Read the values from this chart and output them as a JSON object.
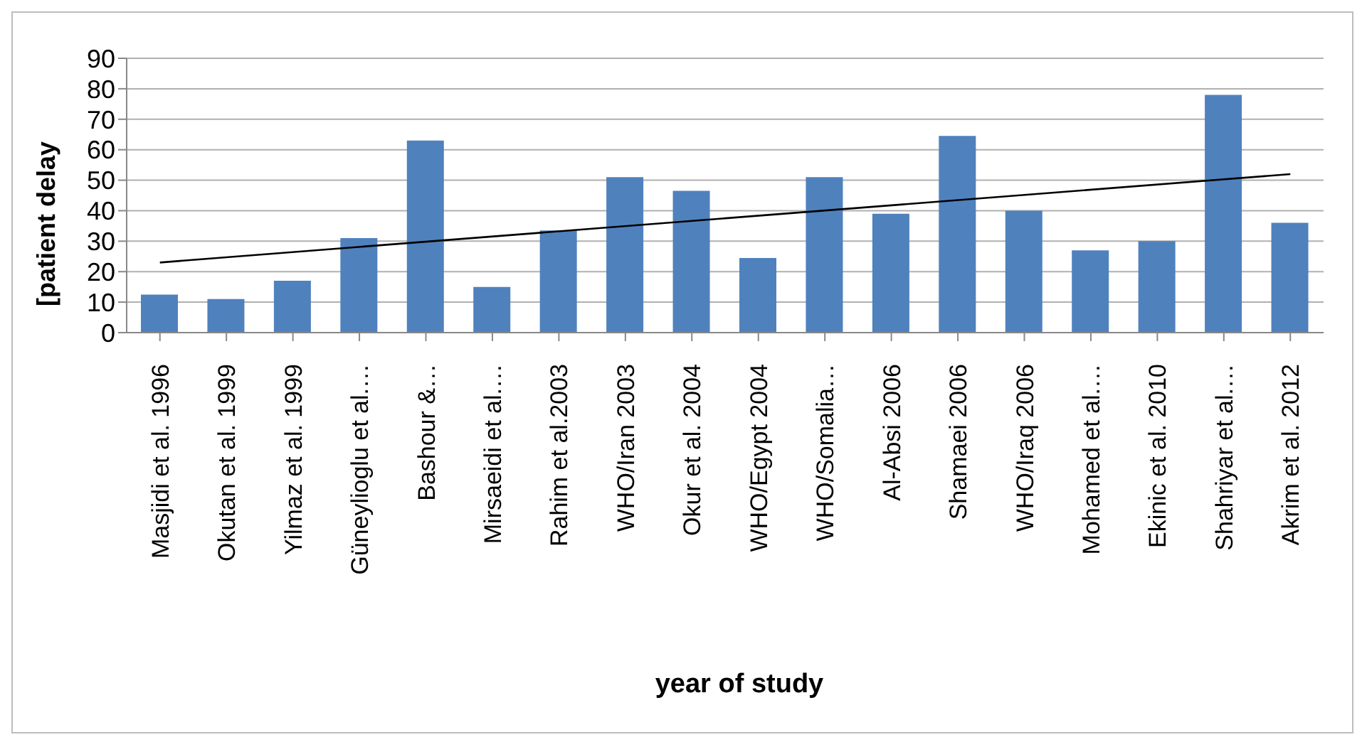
{
  "chart_data": {
    "type": "bar",
    "ylabel": "[patient delay",
    "xlabel": "year of study",
    "categories": [
      "Masjidi et al. 1996",
      "Okutan et al. 1999",
      "Yilmaz et al. 1999",
      "Güneylioglu et al.…",
      "Bashour &…",
      "Mirsaeidi et al.…",
      "Rahim et al.2003",
      "WHO/Iran 2003",
      "Okur et al. 2004",
      "WHO/Egypt 2004",
      "WHO/Somalia…",
      "Al-Absi 2006",
      "Shamaei 2006",
      "WHO/Iraq 2006",
      "Mohamed et al.…",
      "Ekinic et al. 2010",
      "Shahriyar et al.…",
      "Akrim et al. 2012"
    ],
    "series": [
      {
        "color": "#4f81bd",
        "values": [
          12.5,
          11,
          17,
          31,
          63,
          15,
          33.5,
          51,
          46.5,
          24.5,
          51,
          39,
          64.5,
          40,
          27,
          30,
          78,
          36
        ]
      },
      {
        "type": "line",
        "color": "#000000",
        "x": [
          "Masjidi et al. 1996",
          "Akrim et al. 2012"
        ],
        "values": [
          23,
          52
        ]
      }
    ],
    "ylim": [
      0,
      90
    ],
    "yticks": [
      0,
      10,
      20,
      30,
      40,
      50,
      60,
      70,
      80,
      90
    ],
    "grid": "y"
  }
}
